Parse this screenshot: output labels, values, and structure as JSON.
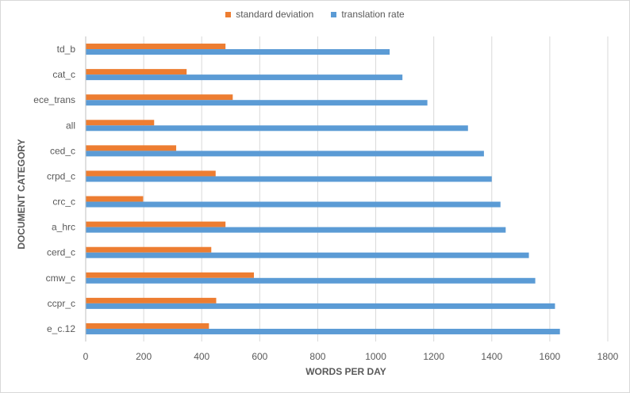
{
  "chart_data": {
    "type": "bar",
    "orientation": "horizontal",
    "title": "",
    "xlabel": "WORDS PER DAY",
    "ylabel": "DOCUMENT CATEGORY",
    "xlim": [
      0,
      1800
    ],
    "x_ticks": [
      0,
      200,
      400,
      600,
      800,
      1000,
      1200,
      1400,
      1600,
      1800
    ],
    "grid": "vertical",
    "legend_position": "top",
    "categories": [
      "td_b",
      "cat_c",
      "ece_trans",
      "all",
      "ced_c",
      "crpd_c",
      "crc_c",
      "a_hrc",
      "cerd_c",
      "cmw_c",
      "ccpr_c",
      "e_c.12"
    ],
    "series": [
      {
        "name": "standard deviation",
        "color": "#ed7d31",
        "values": [
          482,
          348,
          507,
          236,
          312,
          448,
          198,
          482,
          433,
          580,
          450,
          425
        ]
      },
      {
        "name": "translation rate",
        "color": "#5b9bd5",
        "values": [
          1048,
          1092,
          1178,
          1318,
          1373,
          1400,
          1430,
          1448,
          1528,
          1550,
          1618,
          1635
        ]
      }
    ]
  }
}
